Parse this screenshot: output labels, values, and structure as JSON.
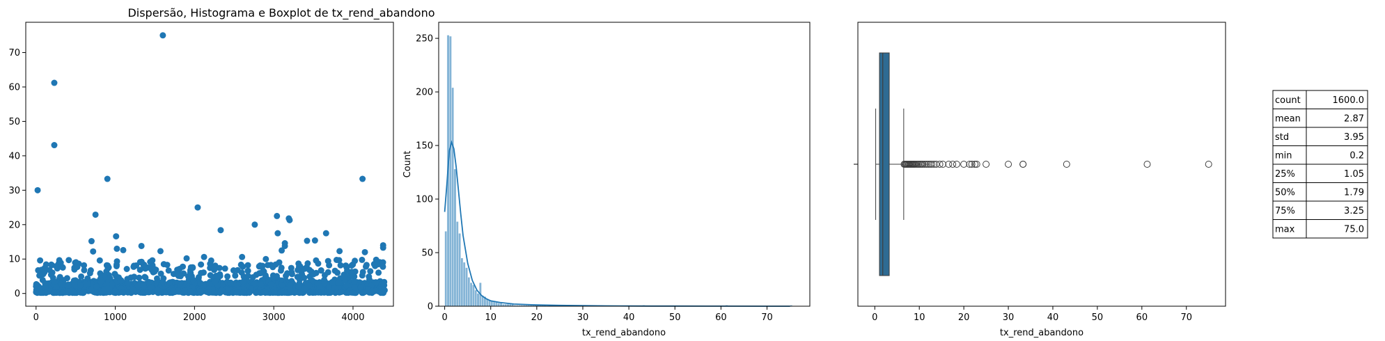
{
  "chart_data": [
    {
      "type": "scatter",
      "title": "Dispersão, Histograma e Boxplot de tx_rend_abandono",
      "xlim": [
        -130,
        4510
      ],
      "ylim": [
        -3.7,
        78.8
      ],
      "xticks": [
        0,
        1000,
        2000,
        3000,
        4000
      ],
      "yticks": [
        0,
        10,
        20,
        30,
        40,
        50,
        60,
        70
      ],
      "color": "#1f77b4",
      "outliers": [
        {
          "x": 1600,
          "y": 75.0
        },
        {
          "x": 230,
          "y": 61.2
        },
        {
          "x": 230,
          "y": 43.1
        },
        {
          "x": 20,
          "y": 30.0
        },
        {
          "x": 900,
          "y": 33.3
        },
        {
          "x": 4120,
          "y": 33.3
        },
        {
          "x": 2040,
          "y": 25.0
        },
        {
          "x": 750,
          "y": 22.9
        },
        {
          "x": 3190,
          "y": 21.8
        },
        {
          "x": 3200,
          "y": 21.3
        },
        {
          "x": 3040,
          "y": 22.5
        },
        {
          "x": 2760,
          "y": 20.0
        },
        {
          "x": 2330,
          "y": 18.4
        },
        {
          "x": 3660,
          "y": 17.5
        },
        {
          "x": 3050,
          "y": 17.5
        },
        {
          "x": 1010,
          "y": 16.6
        },
        {
          "x": 3420,
          "y": 15.3
        },
        {
          "x": 3520,
          "y": 15.4
        },
        {
          "x": 3140,
          "y": 14.6
        },
        {
          "x": 3140,
          "y": 13.8
        },
        {
          "x": 4380,
          "y": 14.0
        },
        {
          "x": 4380,
          "y": 13.3
        },
        {
          "x": 700,
          "y": 15.2
        },
        {
          "x": 1330,
          "y": 13.8
        },
        {
          "x": 1570,
          "y": 12.3
        },
        {
          "x": 1020,
          "y": 13.0
        },
        {
          "x": 1100,
          "y": 12.6
        },
        {
          "x": 3830,
          "y": 12.3
        },
        {
          "x": 4150,
          "y": 12.0
        },
        {
          "x": 720,
          "y": 12.2
        },
        {
          "x": 3100,
          "y": 12.5
        },
        {
          "x": 2600,
          "y": 10.6
        },
        {
          "x": 2900,
          "y": 10.0
        },
        {
          "x": 2120,
          "y": 10.6
        },
        {
          "x": 1900,
          "y": 10.2
        }
      ],
      "bulk": {
        "count": 1565,
        "x_range": [
          0,
          4400
        ],
        "y_median": 1.79,
        "y_max": 9.8,
        "seed": 7
      }
    },
    {
      "type": "bar",
      "subtype": "histogram",
      "xlabel": "tx_rend_abandono",
      "ylabel": "Count",
      "xlim": [
        -1.3,
        79.3
      ],
      "ylim": [
        0,
        265
      ],
      "xticks": [
        0,
        10,
        20,
        30,
        40,
        50,
        60,
        70
      ],
      "yticks": [
        0,
        50,
        100,
        150,
        200,
        250
      ],
      "bin_width": 0.5,
      "bin_start": 0.0,
      "counts": [
        70,
        253,
        252,
        204,
        128,
        79,
        68,
        45,
        41,
        36,
        27,
        22,
        20,
        15,
        12,
        22,
        10,
        9,
        7,
        6,
        5,
        4,
        4,
        3,
        3,
        2,
        2,
        2,
        2,
        2,
        1,
        1,
        1,
        1,
        1,
        1,
        1,
        1,
        1,
        1,
        1,
        1,
        1,
        1,
        0,
        1,
        0,
        1,
        0,
        1
      ],
      "tail_bins": [
        {
          "x": 43.0,
          "count": 1
        },
        {
          "x": 61.0,
          "count": 1
        },
        {
          "x": 75.0,
          "count": 1
        }
      ],
      "kde": [
        [
          0.0,
          88
        ],
        [
          0.5,
          115
        ],
        [
          1.0,
          145
        ],
        [
          1.5,
          153
        ],
        [
          2.0,
          147
        ],
        [
          2.5,
          130
        ],
        [
          3.0,
          108
        ],
        [
          3.5,
          86
        ],
        [
          4.0,
          66
        ],
        [
          5.0,
          40
        ],
        [
          6.0,
          24
        ],
        [
          7.0,
          15
        ],
        [
          8.0,
          10
        ],
        [
          9.0,
          7
        ],
        [
          10.0,
          5
        ],
        [
          12.0,
          3.5
        ],
        [
          15.0,
          2
        ],
        [
          20.0,
          1.2
        ],
        [
          25.0,
          0.8
        ],
        [
          30.0,
          0.5
        ],
        [
          35.0,
          0.3
        ],
        [
          40.0,
          0.2
        ],
        [
          45.0,
          0.15
        ],
        [
          50.0,
          0.1
        ],
        [
          60.0,
          0.05
        ],
        [
          70.0,
          0.03
        ],
        [
          75.0,
          0
        ]
      ],
      "bar_color": "#1f77b4",
      "kde_color": "#1f77b4"
    },
    {
      "type": "boxplot",
      "xlabel": "tx_rend_abandono",
      "xlim": [
        -3.8,
        78.8
      ],
      "xticks": [
        0,
        10,
        20,
        30,
        40,
        50,
        60,
        70
      ],
      "whislo": 0.2,
      "q1": 1.05,
      "med": 1.79,
      "q3": 3.25,
      "whishi": 6.5,
      "fliers": [
        6.6,
        6.8,
        7.0,
        7.2,
        7.4,
        7.6,
        7.8,
        8.0,
        8.2,
        8.4,
        8.6,
        8.8,
        9.0,
        9.3,
        9.6,
        9.9,
        10.2,
        10.5,
        10.8,
        11.2,
        11.6,
        12.0,
        12.4,
        12.8,
        13.3,
        13.8,
        14.6,
        15.3,
        16.6,
        17.5,
        18.4,
        20.0,
        21.3,
        21.8,
        22.5,
        22.9,
        25.0,
        30.0,
        33.3,
        33.3,
        43.1,
        61.2,
        75.0
      ],
      "box_color": "#2e6b93"
    },
    {
      "type": "table",
      "rows": [
        {
          "label": "count",
          "value": "1600.0"
        },
        {
          "label": "mean",
          "value": "2.87"
        },
        {
          "label": "std",
          "value": "3.95"
        },
        {
          "label": "min",
          "value": "0.2"
        },
        {
          "label": "25%",
          "value": "1.05"
        },
        {
          "label": "50%",
          "value": "1.79"
        },
        {
          "label": "75%",
          "value": "3.25"
        },
        {
          "label": "max",
          "value": "75.0"
        }
      ]
    }
  ]
}
